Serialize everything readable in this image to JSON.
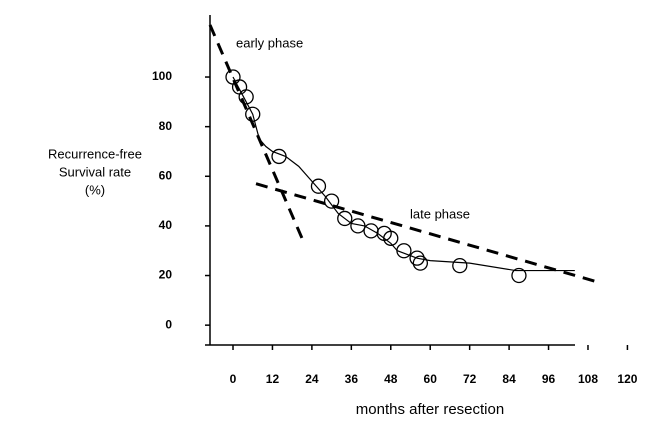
{
  "chart_data": {
    "type": "line",
    "xlabel": "months after resection",
    "ylabel": [
      "Recurrence-free",
      "Survival rate",
      "(%)"
    ],
    "annotations": [
      "early phase",
      "late phase"
    ],
    "xlim": [
      -7,
      122
    ],
    "ylim": [
      -8,
      125
    ],
    "xticks": [
      0,
      12,
      24,
      36,
      48,
      60,
      72,
      84,
      96,
      108,
      120
    ],
    "yticks": [
      0,
      20,
      40,
      60,
      80,
      100
    ],
    "series": [
      {
        "color": "#000000",
        "line": "solid",
        "x": [
          0,
          2,
          4,
          6,
          8,
          10,
          12,
          16,
          20,
          24,
          28,
          32,
          36,
          40,
          44,
          48,
          50,
          54,
          56,
          60,
          72,
          86,
          104
        ],
        "values": [
          100,
          95,
          90,
          85,
          75,
          72,
          70,
          68,
          64,
          58,
          52,
          45,
          41,
          40,
          37,
          33,
          30,
          28,
          27,
          26,
          25,
          22,
          22
        ]
      },
      {
        "color": "#000000",
        "line": "dashed",
        "x": [
          -7,
          21
        ],
        "values": [
          121,
          35
        ]
      },
      {
        "color": "#000000",
        "line": "dashed",
        "x": [
          7,
          112
        ],
        "values": [
          57,
          17
        ]
      },
      {
        "color": "#000000",
        "line": "none",
        "marker": "circle",
        "x": [
          0,
          2,
          4,
          6,
          14,
          26,
          30,
          34,
          38,
          42,
          46,
          48,
          52,
          56,
          57,
          69,
          87
        ],
        "values": [
          100,
          96,
          92,
          85,
          68,
          56,
          50,
          43,
          40,
          38,
          37,
          35,
          30,
          27,
          25,
          24,
          20
        ]
      }
    ]
  }
}
